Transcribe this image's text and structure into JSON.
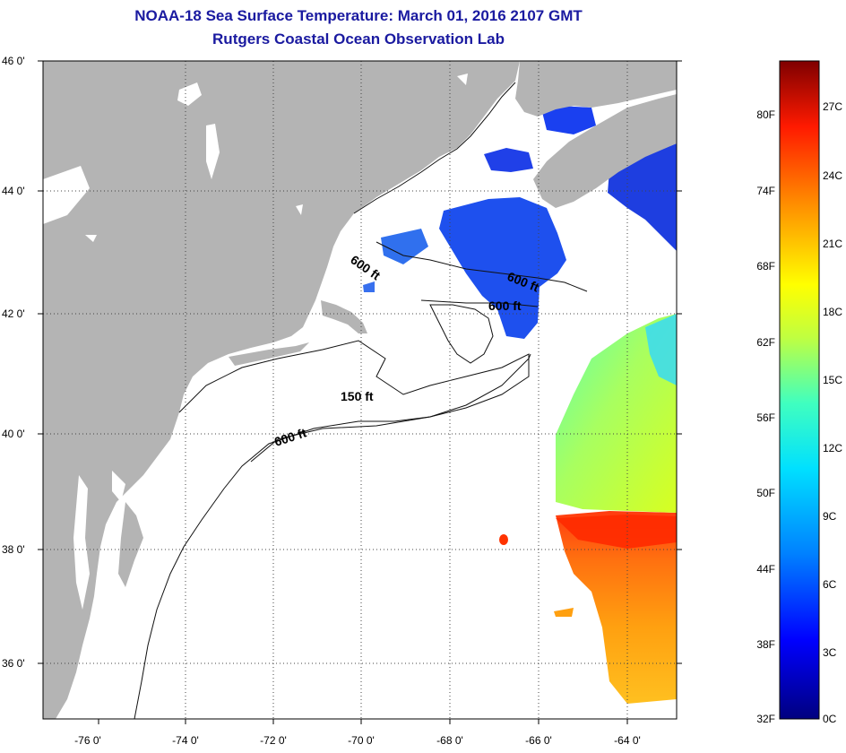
{
  "header": {
    "title": "NOAA-18 Sea Surface Temperature:  March 01, 2016 2107 GMT",
    "subtitle": "Rutgers Coastal Ocean Observation Lab"
  },
  "map": {
    "lat_labels": [
      "46 0'",
      "44 0'",
      "42 0'",
      "40 0'",
      "38 0'",
      "36 0'"
    ],
    "lon_labels": [
      "-76 0'",
      "-74 0'",
      "-72 0'",
      "-70 0'",
      "-68 0'",
      "-66 0'",
      "-64 0'"
    ],
    "contour_labels": [
      "600 ft",
      "600 ft",
      "600 ft",
      "150 ft",
      "600 ft"
    ],
    "colors": {
      "land": "#b4b4b4",
      "ocean": "#ffffff",
      "grid": "#555555",
      "coast": "#111111",
      "title": "#1a1aa0"
    }
  },
  "colorbar": {
    "fahrenheit_labels": [
      "80F",
      "74F",
      "68F",
      "62F",
      "56F",
      "50F",
      "44F",
      "38F",
      "32F"
    ],
    "celsius_labels": [
      "27C",
      "24C",
      "21C",
      "18C",
      "15C",
      "12C",
      "9C",
      "6C",
      "3C",
      "0C"
    ],
    "stops": [
      "#00007f",
      "#0000ff",
      "#0080ff",
      "#00e0ff",
      "#40ffbf",
      "#c0ff40",
      "#ffff00",
      "#ff9000",
      "#ff1a00",
      "#7f0000"
    ]
  }
}
